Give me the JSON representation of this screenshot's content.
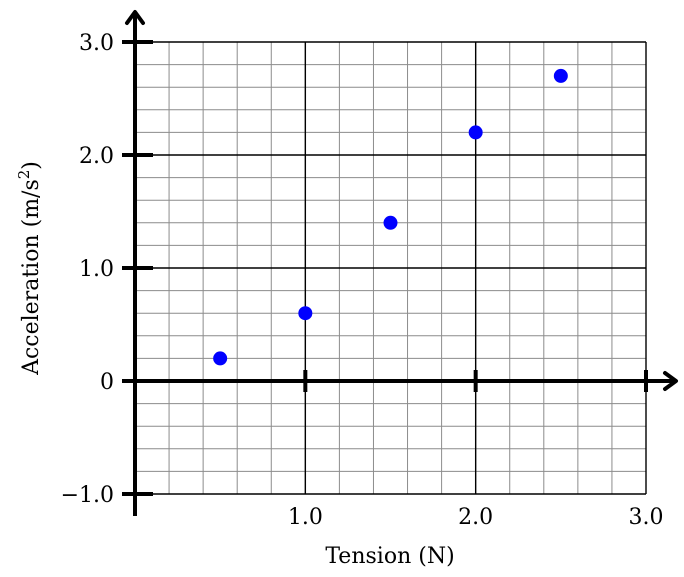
{
  "chart_data": {
    "type": "scatter",
    "xlabel": "Tension (N)",
    "ylabel_main": "Acceleration (m/s",
    "ylabel_sup": "2",
    "ylabel_tail": ")",
    "xlim": [
      0,
      3.0
    ],
    "ylim": [
      -1.0,
      3.0
    ],
    "x_ticks": [
      1.0,
      2.0,
      3.0
    ],
    "x_tick_labels": [
      "1.0",
      "2.0",
      "3.0"
    ],
    "y_ticks": [
      -1.0,
      0,
      1.0,
      2.0,
      3.0
    ],
    "y_tick_labels": [
      "−1.0",
      "0",
      "1.0",
      "2.0",
      "3.0"
    ],
    "grid": true,
    "minor_grid_step": 0.2,
    "major_grid_step": 1.0,
    "point_color": "#0000ff",
    "points": [
      {
        "x": 0.5,
        "y": 0.2
      },
      {
        "x": 1.0,
        "y": 0.6
      },
      {
        "x": 1.5,
        "y": 1.4
      },
      {
        "x": 2.0,
        "y": 2.2
      },
      {
        "x": 2.5,
        "y": 2.7
      }
    ]
  }
}
